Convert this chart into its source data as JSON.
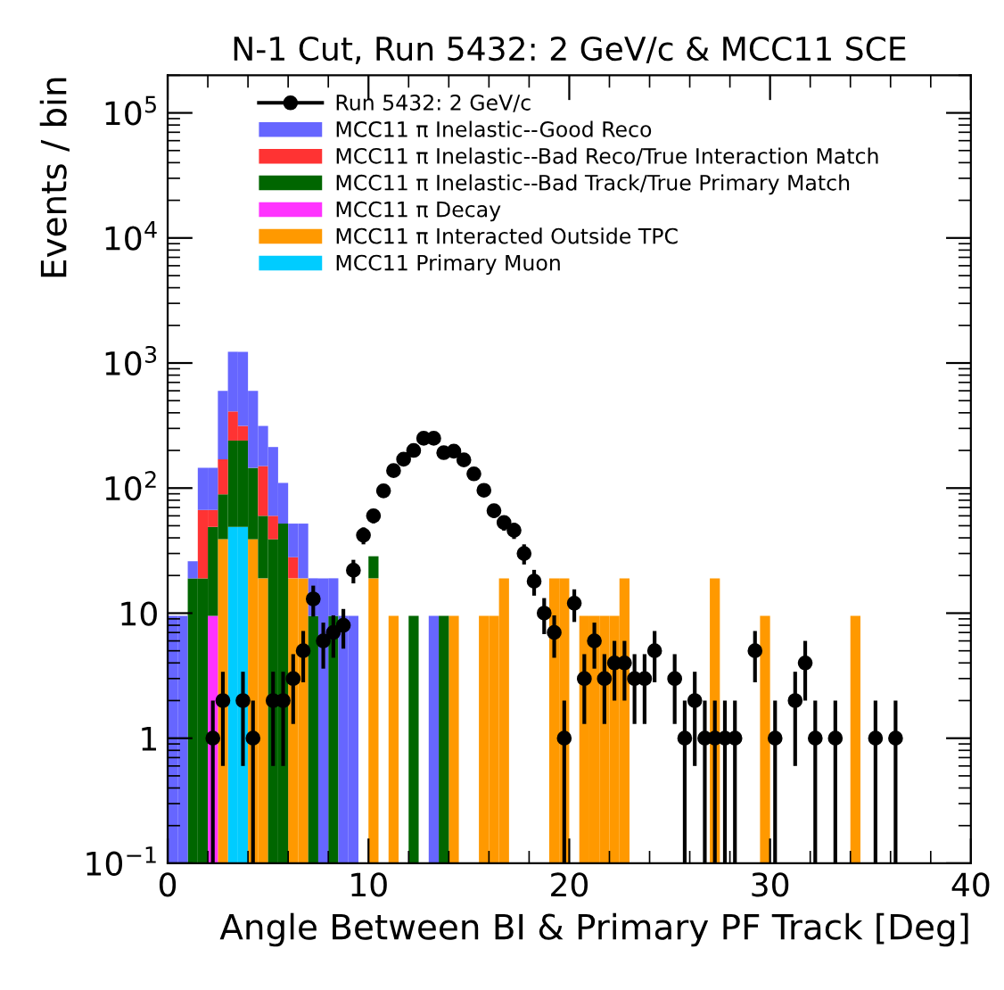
{
  "chart_data": {
    "type": "bar",
    "title": "N-1 Cut, Run 5432: 2 GeV/c & MCC11 SCE",
    "xlabel": "Angle Between BI & Primary PF Track [Deg]",
    "ylabel": "Events / bin",
    "x": [
      0.25,
      0.75,
      1.25,
      1.75,
      2.25,
      2.75,
      3.25,
      3.75,
      4.25,
      4.75,
      5.25,
      5.75,
      6.25,
      6.75,
      7.25,
      7.75,
      8.25,
      8.75,
      9.25,
      9.75,
      10.25,
      10.75,
      11.25,
      11.75,
      12.25,
      12.75,
      13.25,
      13.75,
      14.25,
      14.75,
      15.25,
      15.75,
      16.25,
      16.75,
      17.25,
      17.75,
      18.25,
      18.75,
      19.25,
      19.75,
      20.25,
      20.75,
      21.25,
      21.75,
      22.25,
      22.75,
      23.25,
      23.75,
      24.25,
      24.75,
      25.25,
      25.75,
      26.25,
      26.75,
      27.25,
      27.75,
      28.25,
      28.75,
      29.25,
      29.75,
      30.25,
      30.75,
      31.25,
      31.75,
      32.25,
      32.75,
      33.25,
      33.75,
      34.25
    ],
    "stacked": true,
    "log": "y",
    "grid": false,
    "legend": "top",
    "xlim": [
      0,
      40
    ],
    "xticks": [
      0,
      10,
      20,
      30,
      40
    ],
    "ylim": [
      0.1,
      200000
    ],
    "yticks": [
      {
        "value": 0.1,
        "label": "10$^{−1}$"
      },
      1,
      10,
      {
        "value": 100,
        "label": "10$^{2}$"
      },
      {
        "value": 1000,
        "label": "10$^{3}$"
      },
      {
        "value": 10000,
        "label": "10$^{4}$"
      },
      {
        "value": 100000,
        "label": "10$^{5}$"
      }
    ],
    "series": [
      {
        "name": "MCC11 Primary Muon",
        "color": "#00ccff",
        "values": [
          null,
          null,
          null,
          null,
          null,
          null,
          49,
          49,
          null,
          null,
          null,
          null,
          null,
          null,
          null,
          null,
          null,
          null,
          null,
          null,
          null,
          null,
          null,
          null,
          null,
          null,
          null,
          null,
          null,
          null,
          null,
          null,
          null,
          null,
          null,
          null,
          null,
          null,
          null,
          null,
          null,
          null,
          null,
          null,
          null,
          null,
          null,
          null,
          null,
          null,
          null,
          null,
          null,
          null,
          null,
          null,
          null,
          null,
          null,
          null,
          null,
          null,
          null,
          null,
          null,
          null,
          null,
          null,
          null
        ]
      },
      {
        "name": "MCC11 π Interacted Outside TPC",
        "color": "#ff9900",
        "values": [
          null,
          null,
          null,
          null,
          null,
          39,
          null,
          null,
          39,
          19,
          null,
          null,
          19,
          19,
          null,
          null,
          null,
          null,
          null,
          null,
          19,
          null,
          9.5,
          null,
          null,
          null,
          null,
          null,
          9.5,
          null,
          null,
          9.5,
          9.5,
          19,
          null,
          null,
          null,
          null,
          19,
          19,
          null,
          9.5,
          9.5,
          9.5,
          9.5,
          19,
          null,
          null,
          null,
          null,
          null,
          null,
          null,
          null,
          19,
          null,
          null,
          null,
          null,
          9.5,
          null,
          null,
          null,
          null,
          null,
          null,
          null,
          null,
          9.5
        ]
      },
      {
        "name": "MCC11 π Decay",
        "color": "#ff33ff",
        "values": [
          null,
          null,
          null,
          null,
          9.5,
          null,
          null,
          null,
          null,
          null,
          null,
          null,
          null,
          null,
          null,
          null,
          null,
          null,
          null,
          null,
          null,
          null,
          null,
          null,
          null,
          null,
          null,
          null,
          null,
          null,
          null,
          null,
          null,
          null,
          null,
          null,
          null,
          null,
          null,
          null,
          null,
          null,
          null,
          null,
          null,
          null,
          null,
          null,
          null,
          null,
          null,
          null,
          null,
          null,
          null,
          null,
          null,
          null,
          null,
          null,
          null,
          null,
          null,
          null,
          null,
          null,
          null,
          null,
          null
        ]
      },
      {
        "name": "MCC11 π Inelastic--Bad Track/True Primary Match",
        "color": "#006600",
        "values": [
          null,
          null,
          19,
          19,
          39.5,
          50,
          191,
          191,
          106,
          41,
          39,
          52,
          null,
          null,
          9.5,
          null,
          9.5,
          null,
          null,
          null,
          9.5,
          null,
          null,
          null,
          9.5,
          null,
          null,
          9.5,
          null,
          null,
          null,
          null,
          null,
          null,
          null,
          null,
          null,
          null,
          null,
          null,
          null,
          null,
          null,
          null,
          null,
          null,
          null,
          null,
          null,
          null,
          null,
          null,
          null,
          null,
          null,
          null,
          null,
          null,
          null,
          null,
          null,
          null,
          null,
          null,
          null,
          null,
          null,
          null,
          null
        ]
      },
      {
        "name": "MCC11 π Inelastic--Bad Reco/True Interaction Match",
        "color": "#ff3333",
        "values": [
          null,
          null,
          null,
          48,
          18,
          81,
          170,
          74,
          null,
          90,
          21,
          null,
          9,
          null,
          null,
          null,
          null,
          null,
          null,
          null,
          null,
          null,
          null,
          null,
          null,
          null,
          null,
          null,
          null,
          null,
          null,
          null,
          null,
          null,
          null,
          null,
          null,
          null,
          null,
          null,
          null,
          null,
          null,
          null,
          null,
          null,
          null,
          null,
          null,
          null,
          null,
          null,
          null,
          null,
          null,
          null,
          null,
          null,
          null,
          null,
          null,
          null,
          null,
          null,
          null,
          null,
          null,
          null,
          null
        ]
      },
      {
        "name": "MCC11 π Inelastic--Good Reco",
        "color": "#6666ff",
        "values": [
          9.5,
          9.5,
          7,
          78,
          78,
          430,
          820,
          916,
          455,
          164,
          153,
          58,
          24,
          33,
          9.5,
          19,
          9.5,
          9.5,
          9.5,
          null,
          null,
          null,
          null,
          null,
          null,
          null,
          9.5,
          null,
          null,
          null,
          null,
          null,
          null,
          null,
          null,
          null,
          null,
          null,
          null,
          null,
          null,
          null,
          null,
          null,
          null,
          null,
          null,
          null,
          null,
          null,
          null,
          null,
          null,
          null,
          null,
          null,
          null,
          null,
          null,
          null,
          null,
          null,
          null,
          null,
          null,
          null,
          null,
          null,
          null
        ]
      },
      {
        "name": "Run 5432: 2 GeV/c",
        "type": "scatter",
        "color": "#000000",
        "marker": "circle",
        "x": [
          2.25,
          2.75,
          3.75,
          4.25,
          5.25,
          5.75,
          6.25,
          6.75,
          7.25,
          7.75,
          8.25,
          8.75,
          9.25,
          9.75,
          10.25,
          10.75,
          11.25,
          11.75,
          12.25,
          12.75,
          13.25,
          13.75,
          14.25,
          14.75,
          15.25,
          15.75,
          16.25,
          16.75,
          17.25,
          17.75,
          18.25,
          18.75,
          19.25,
          19.75,
          20.25,
          20.75,
          21.25,
          21.75,
          22.25,
          22.75,
          23.25,
          23.75,
          24.25,
          25.25,
          25.75,
          26.25,
          26.75,
          27.25,
          27.75,
          28.25,
          29.25,
          30.25,
          31.25,
          31.75,
          32.25,
          33.25,
          35.25,
          36.25
        ],
        "values": [
          1,
          2,
          2,
          1,
          2,
          2,
          3,
          5,
          13,
          6,
          7,
          8,
          22,
          42,
          60,
          95,
          138,
          170,
          200,
          250,
          250,
          192,
          197,
          168,
          130,
          96,
          66,
          53,
          46,
          30,
          18,
          10,
          7,
          1,
          12,
          3,
          6,
          3,
          4,
          4,
          3,
          3,
          5,
          3,
          1,
          2,
          1,
          1,
          1,
          1,
          5,
          1,
          2,
          4,
          1,
          1,
          1,
          1
        ],
        "errors": [
          [
            0.1,
            2
          ],
          [
            0.6,
            3.4
          ],
          [
            0.6,
            3.4
          ],
          [
            0.1,
            2
          ],
          [
            0.6,
            3.4
          ],
          [
            0.6,
            3.4
          ],
          [
            1.3,
            4.7
          ],
          [
            2.8,
            7.2
          ],
          [
            9.4,
            16.6
          ],
          [
            3.6,
            8.4
          ],
          [
            4.4,
            9.6
          ],
          [
            5.2,
            10.8
          ],
          [
            17.3,
            26.7
          ],
          [
            35.5,
            48.5
          ],
          [
            52.3,
            67.7
          ],
          [
            85.3,
            104.7
          ],
          [
            126.3,
            149.7
          ],
          [
            157,
            183
          ],
          [
            186,
            214
          ],
          [
            234,
            266
          ],
          [
            234,
            266
          ],
          [
            178,
            206
          ],
          [
            183,
            211
          ],
          [
            155,
            181
          ],
          [
            118.6,
            141.4
          ],
          [
            86.2,
            105.8
          ],
          [
            57.9,
            74.1
          ],
          [
            45.7,
            60.3
          ],
          [
            39.2,
            52.8
          ],
          [
            24.5,
            35.5
          ],
          [
            13.8,
            22.2
          ],
          [
            6.8,
            13.2
          ],
          [
            4.4,
            9.6
          ],
          [
            0.1,
            2
          ],
          [
            8.5,
            15.5
          ],
          [
            1.3,
            4.7
          ],
          [
            3.6,
            8.4
          ],
          [
            1.3,
            4.7
          ],
          [
            2,
            6
          ],
          [
            2,
            6
          ],
          [
            1.3,
            4.7
          ],
          [
            1.3,
            4.7
          ],
          [
            2.8,
            7.2
          ],
          [
            1.3,
            4.7
          ],
          [
            0.1,
            2
          ],
          [
            0.6,
            3.4
          ],
          [
            0.1,
            2
          ],
          [
            0.1,
            2
          ],
          [
            0.1,
            2
          ],
          [
            0.1,
            2
          ],
          [
            2.8,
            7.2
          ],
          [
            0.1,
            2
          ],
          [
            0.6,
            3.4
          ],
          [
            2,
            6
          ],
          [
            0.1,
            2
          ],
          [
            0.1,
            2
          ],
          [
            0.1,
            2
          ],
          [
            0.1,
            2
          ]
        ]
      }
    ]
  }
}
